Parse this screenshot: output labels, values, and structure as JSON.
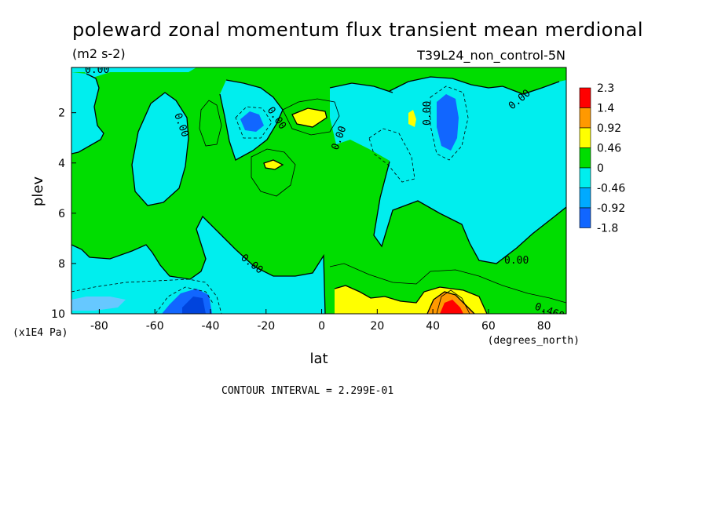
{
  "chart_data": {
    "type": "heatmap",
    "title": "poleward zonal momentum flux transient mean merdional",
    "units": "(m2 s-2)",
    "run_label": "T39L24_non_control-5N",
    "xlabel": "lat",
    "x_unit": "(degrees_north)",
    "ylabel": "plev",
    "y_unit": "(x1E4 Pa)",
    "xlim": [
      -90,
      88
    ],
    "ylim": [
      10,
      0.2
    ],
    "x_ticks": [
      "-80",
      "-60",
      "-40",
      "-20",
      "0",
      "20",
      "40",
      "60",
      "80"
    ],
    "x_tick_values": [
      -80,
      -60,
      -40,
      -20,
      0,
      20,
      40,
      60,
      80
    ],
    "y_ticks": [
      "2",
      "4",
      "6",
      "8",
      "10"
    ],
    "y_tick_values": [
      2,
      4,
      6,
      8,
      10
    ],
    "contour_interval_text": "CONTOUR INTERVAL = 2.299E-01",
    "contour_labels": [
      "0.00",
      "0.00",
      "0.00",
      "0.00",
      "0.00",
      "0.00",
      "0.00",
      "0.00",
      "0.460"
    ],
    "colorbar": {
      "labels": [
        "2.3",
        "1.4",
        "0.92",
        "0.46",
        "0",
        "-0.46",
        "-0.92",
        "-1.8"
      ],
      "colors": [
        "#ff0000",
        "#ff9900",
        "#ffff00",
        "#00dd00",
        "#00eeee",
        "#00aaff",
        "#1166ff"
      ]
    },
    "colors": {
      "positive_high": "#ff0000",
      "positive_mid": "#ff9900",
      "positive_low": "#ffff00",
      "near_zero_pos": "#00dd00",
      "near_zero_neg": "#00eeee",
      "negative_mid": "#00aaff",
      "negative_high": "#1166ff"
    }
  }
}
